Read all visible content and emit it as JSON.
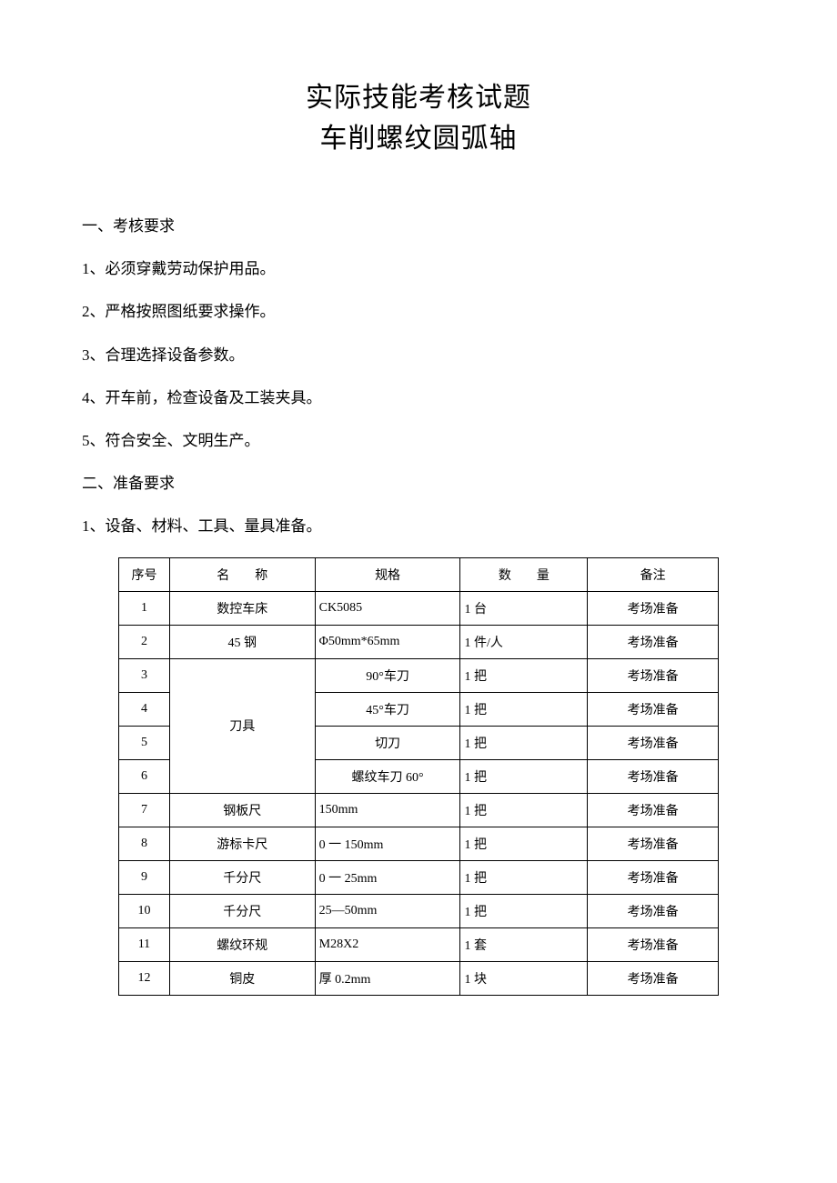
{
  "title": {
    "line1": "实际技能考核试题",
    "line2": "车削螺纹圆弧轴"
  },
  "section1": {
    "heading": "一、考核要求",
    "items": [
      "1、必须穿戴劳动保护用品。",
      "2、严格按照图纸要求操作。",
      "3、合理选择设备参数。",
      "4、开车前，检查设备及工装夹具。",
      "5、符合安全、文明生产。"
    ]
  },
  "section2": {
    "heading": "二、准备要求",
    "intro": "1、设备、材料、工具、量具准备。"
  },
  "table": {
    "headers": {
      "seq": "序号",
      "name": "名　　称",
      "spec": "规格",
      "qty": "数　　量",
      "note": "备注"
    },
    "rows": [
      {
        "seq": "1",
        "name": "数控车床",
        "spec": "CK5085",
        "spec_align": "left",
        "qty": "1 台",
        "note": "考场准备"
      },
      {
        "seq": "2",
        "name": "45 钢",
        "spec": "Φ50mm*65mm",
        "spec_align": "left",
        "qty": "1 件/人",
        "note": "考场准备"
      },
      {
        "seq": "3",
        "name_rowspan": 4,
        "name": "刀具",
        "spec": "90°车刀",
        "spec_align": "center",
        "qty": "1 把",
        "note": "考场准备"
      },
      {
        "seq": "4",
        "spec": "45°车刀",
        "spec_align": "center",
        "qty": "1 把",
        "note": "考场准备"
      },
      {
        "seq": "5",
        "spec": "切刀",
        "spec_align": "center",
        "qty": "1 把",
        "note": "考场准备"
      },
      {
        "seq": "6",
        "spec": "螺纹车刀 60°",
        "spec_align": "center",
        "qty": "1 把",
        "note": "考场准备"
      },
      {
        "seq": "7",
        "name": "钢板尺",
        "spec": "150mm",
        "spec_align": "left",
        "qty": "1 把",
        "note": "考场准备"
      },
      {
        "seq": "8",
        "name": "游标卡尺",
        "spec": "0 一 150mm",
        "spec_align": "left",
        "qty": "1 把",
        "note": "考场准备"
      },
      {
        "seq": "9",
        "name": "千分尺",
        "spec": "0 一 25mm",
        "spec_align": "left",
        "qty": "1 把",
        "note": "考场准备"
      },
      {
        "seq": "10",
        "name": "千分尺",
        "spec": "25—50mm",
        "spec_align": "left",
        "qty": "1 把",
        "note": "考场准备"
      },
      {
        "seq": "11",
        "name": "螺纹环规",
        "spec": "M28X2",
        "spec_align": "left",
        "qty": "1 套",
        "note": "考场准备"
      },
      {
        "seq": "12",
        "name": "铜皮",
        "spec": "厚 0.2mm",
        "spec_align": "left",
        "qty": "1 块",
        "note": "考场准备"
      }
    ]
  }
}
